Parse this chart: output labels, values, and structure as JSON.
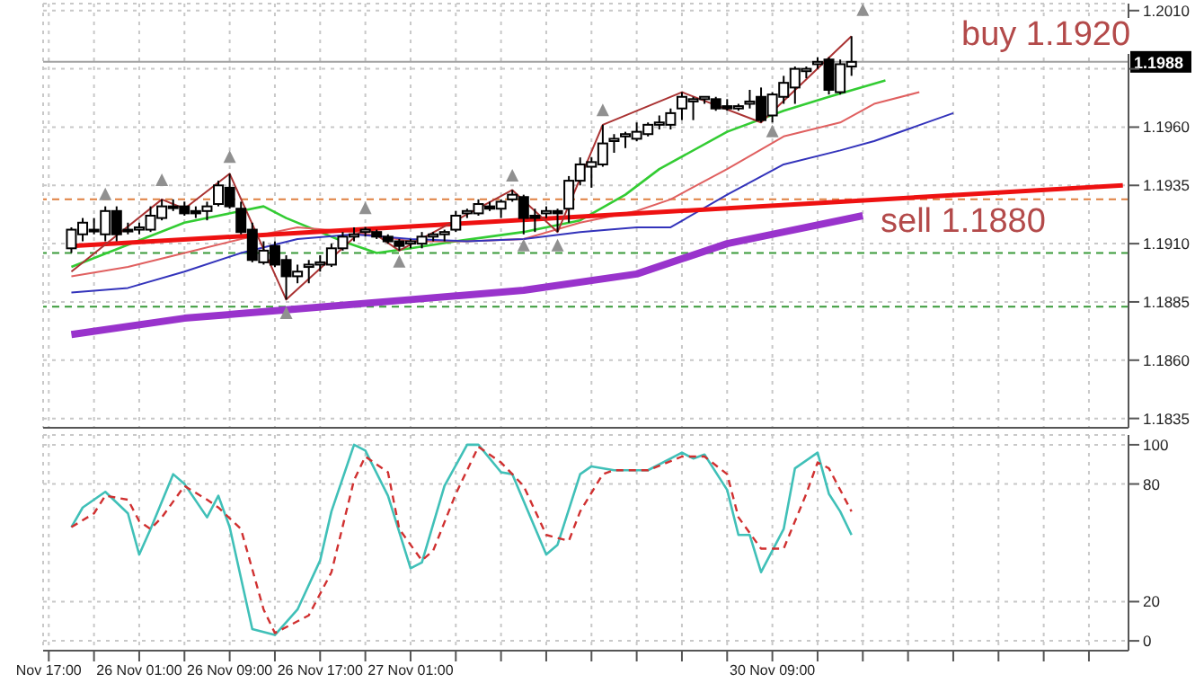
{
  "chart_data": [
    {
      "type": "candlestick",
      "categories": [
        null,
        null,
        null,
        null,
        null,
        null,
        null,
        null,
        null,
        null,
        null,
        null,
        null,
        null,
        null,
        null,
        null,
        null,
        null,
        null,
        null,
        null,
        null,
        null,
        null,
        null,
        null,
        null,
        null,
        null,
        null,
        null,
        null,
        null,
        null,
        null,
        null,
        null,
        null,
        null,
        null,
        null,
        null,
        null,
        null,
        null,
        null,
        null,
        null,
        null,
        null,
        null,
        null,
        null,
        null,
        null,
        null,
        null,
        null,
        null,
        null,
        null,
        null,
        null,
        null,
        null,
        null,
        null,
        null,
        null,
        null,
        null,
        null,
        null,
        null,
        null,
        null,
        null,
        null,
        null,
        null,
        null,
        null,
        null,
        null,
        null,
        null,
        null,
        null,
        null,
        null,
        null,
        null,
        null,
        null,
        null
      ],
      "ohlc": [
        null,
        null,
        [
          1.1908,
          1.1917,
          1.1906,
          1.1916
        ],
        [
          1.1914,
          1.1921,
          1.1911,
          1.1919
        ],
        [
          1.1916,
          1.1921,
          1.1914,
          1.1916
        ],
        [
          1.1914,
          1.1926,
          1.1911,
          1.1924
        ],
        [
          1.1924,
          1.1926,
          1.1911,
          1.1914
        ],
        [
          1.1916,
          1.1919,
          1.1914,
          1.1916
        ],
        [
          1.1916,
          1.1919,
          1.1914,
          1.1917
        ],
        [
          1.1916,
          1.1926,
          1.1915,
          1.1922
        ],
        [
          1.1921,
          1.1929,
          1.192,
          1.1926
        ],
        [
          1.1926,
          1.1929,
          1.1924,
          1.1926
        ],
        [
          1.1926,
          1.1928,
          1.1922,
          1.1923
        ],
        [
          1.1924,
          1.1926,
          1.1921,
          1.1923
        ],
        [
          1.1924,
          1.1928,
          1.192,
          1.1926
        ],
        [
          1.1927,
          1.1937,
          1.1926,
          1.1935
        ],
        [
          1.1934,
          1.194,
          1.1925,
          1.1926
        ],
        [
          1.1925,
          1.1928,
          1.1914,
          1.1915
        ],
        [
          1.1916,
          1.1919,
          1.1902,
          1.1903
        ],
        [
          1.1902,
          1.1911,
          1.1901,
          1.1907
        ],
        [
          1.1909,
          1.1911,
          1.19,
          1.1901
        ],
        [
          1.1903,
          1.1905,
          1.1886,
          1.1896
        ],
        [
          1.1896,
          1.1901,
          1.1893,
          1.1898
        ],
        [
          1.19,
          1.1903,
          1.1893,
          1.1901
        ],
        [
          1.1901,
          1.1905,
          1.1898,
          1.1902
        ],
        [
          1.1901,
          1.191,
          1.19,
          1.1908
        ],
        [
          1.1908,
          1.1915,
          1.1907,
          1.1913
        ],
        [
          1.1913,
          1.1917,
          1.1911,
          1.1914
        ],
        [
          1.1915,
          1.1917,
          1.1913,
          1.1916
        ],
        [
          1.1915,
          1.1916,
          1.1912,
          1.1913
        ],
        [
          1.1913,
          1.1914,
          1.191,
          1.1911
        ],
        [
          1.1911,
          1.1912,
          1.1907,
          1.1909
        ],
        [
          1.191,
          1.1912,
          1.1908,
          1.1911
        ],
        [
          1.191,
          1.1915,
          1.1908,
          1.1913
        ],
        [
          1.1913,
          1.1915,
          1.1911,
          1.1914
        ],
        [
          1.1914,
          1.1916,
          1.1911,
          1.1915
        ],
        [
          1.1916,
          1.1924,
          1.1915,
          1.1922
        ],
        [
          1.1923,
          1.1925,
          1.1921,
          1.1924
        ],
        [
          1.1923,
          1.1929,
          1.1922,
          1.1927
        ],
        [
          1.1926,
          1.1928,
          1.1924,
          1.1925
        ],
        [
          1.1925,
          1.1929,
          1.1921,
          1.1928
        ],
        [
          1.1929,
          1.1933,
          1.1928,
          1.1931
        ],
        [
          1.193,
          1.1931,
          1.1914,
          1.1921
        ],
        [
          1.1922,
          1.1925,
          1.1915,
          1.1921
        ],
        [
          1.1923,
          1.1926,
          1.1921,
          1.1924
        ],
        [
          1.1924,
          1.1925,
          1.1915,
          1.1923
        ],
        [
          1.1925,
          1.1939,
          1.1919,
          1.1937
        ],
        [
          1.1937,
          1.1947,
          1.1935,
          1.1944
        ],
        [
          1.1943,
          1.1947,
          1.1934,
          1.1945
        ],
        [
          1.1944,
          1.1961,
          1.1943,
          1.1953
        ],
        [
          1.1954,
          1.1957,
          1.1949,
          1.1955
        ],
        [
          1.1956,
          1.1958,
          1.1951,
          1.1957
        ],
        [
          1.1955,
          1.1962,
          1.1954,
          1.1958
        ],
        [
          1.1957,
          1.1962,
          1.1956,
          1.1961
        ],
        [
          1.1961,
          1.1965,
          1.1959,
          1.1962
        ],
        [
          1.1961,
          1.1968,
          1.1959,
          1.1966
        ],
        [
          1.1968,
          1.1975,
          1.1963,
          1.1973
        ],
        [
          1.1971,
          1.1973,
          1.1963,
          1.1972
        ],
        [
          1.1972,
          1.1973,
          1.197,
          1.1973
        ],
        [
          1.1972,
          1.1973,
          1.1967,
          1.1968
        ],
        [
          1.1969,
          1.1972,
          1.1967,
          1.1968
        ],
        [
          1.1968,
          1.197,
          1.1967,
          1.1969
        ],
        [
          1.197,
          1.1976,
          1.1968,
          1.1971
        ],
        [
          1.1973,
          1.1977,
          1.1962,
          1.1963
        ],
        [
          1.1965,
          1.1975,
          1.1962,
          1.1974
        ],
        [
          1.1973,
          1.1982,
          1.197,
          1.1979
        ],
        [
          1.1977,
          1.1986,
          1.197,
          1.1985
        ],
        [
          1.1984,
          1.1986,
          1.1981,
          1.1985
        ],
        [
          1.1987,
          1.199,
          1.1985,
          1.1988
        ],
        [
          1.1989,
          1.199,
          1.1974,
          1.1976
        ],
        [
          1.1975,
          1.1989,
          1.1974,
          1.1987
        ],
        [
          1.1986,
          1.1999,
          1.1982,
          1.1988
        ],
        null,
        null,
        null,
        null,
        null,
        null,
        null,
        null,
        null,
        null,
        null,
        null,
        null,
        null,
        null,
        null,
        null,
        null,
        null,
        null,
        null,
        null,
        null,
        null
      ],
      "color": "#000000",
      "series": [
        {
          "type": "line",
          "color": "#33cc33",
          "values": [
            null,
            null,
            1.19,
            null,
            null,
            null,
            null,
            null,
            null,
            null,
            null,
            null,
            1.1919,
            null,
            null,
            null,
            null,
            1.1924,
            null,
            1.1926,
            null,
            1.1921,
            null,
            null,
            null,
            null,
            1.1911,
            null,
            null,
            1.1906,
            null,
            null,
            1.1908,
            null,
            null,
            null,
            1.1911,
            null,
            null,
            null,
            null,
            null,
            1.1915,
            null,
            null,
            null,
            null,
            1.192,
            null,
            null,
            null,
            1.1931,
            null,
            null,
            1.1942,
            null,
            null,
            null,
            null,
            null,
            1.1958,
            null,
            null,
            null,
            null,
            1.1967,
            null,
            null,
            null,
            1.1973,
            null,
            null,
            null,
            null,
            1.198,
            null,
            null,
            null,
            null,
            null,
            null,
            null,
            null,
            null,
            null,
            null,
            null,
            null,
            null,
            null,
            null,
            null,
            null,
            null,
            null,
            null
          ]
        },
        {
          "type": "line",
          "color": "#e06060",
          "values": [
            null,
            null,
            1.1896,
            null,
            null,
            null,
            null,
            1.19,
            null,
            null,
            null,
            null,
            1.1906,
            null,
            null,
            null,
            null,
            1.1912,
            null,
            null,
            null,
            null,
            1.1917,
            null,
            null,
            null,
            null,
            1.1915,
            null,
            null,
            null,
            null,
            1.1911,
            null,
            null,
            null,
            null,
            1.1911,
            null,
            null,
            null,
            null,
            1.1912,
            null,
            null,
            null,
            null,
            1.1919,
            null,
            null,
            null,
            null,
            1.1924,
            null,
            null,
            1.1929,
            null,
            null,
            null,
            null,
            1.1942,
            null,
            null,
            null,
            null,
            1.1956,
            null,
            null,
            null,
            null,
            1.1962,
            null,
            null,
            1.197,
            null,
            null,
            null,
            1.1975,
            null,
            null,
            null,
            null,
            null,
            null,
            null,
            null,
            null,
            null,
            null,
            null,
            null,
            null,
            null,
            null,
            null,
            null
          ]
        },
        {
          "type": "line",
          "color": "#3333bb",
          "values": [
            null,
            null,
            1.1889,
            null,
            null,
            null,
            null,
            1.1891,
            null,
            null,
            null,
            null,
            1.1898,
            null,
            null,
            null,
            null,
            1.1906,
            null,
            null,
            null,
            null,
            1.1912,
            null,
            null,
            null,
            null,
            1.1914,
            null,
            null,
            null,
            null,
            1.1912,
            null,
            null,
            null,
            null,
            1.1911,
            null,
            null,
            null,
            null,
            1.1912,
            null,
            null,
            null,
            null,
            1.1915,
            null,
            null,
            null,
            null,
            1.1917,
            null,
            null,
            1.1917,
            null,
            null,
            null,
            null,
            1.1931,
            null,
            null,
            null,
            null,
            1.1944,
            null,
            null,
            null,
            null,
            1.195,
            null,
            null,
            1.1954,
            null,
            null,
            null,
            null,
            null,
            null,
            1.1966,
            null,
            null,
            null,
            null,
            null,
            null,
            null,
            null,
            null,
            null,
            null,
            null,
            null,
            null,
            null
          ]
        },
        {
          "type": "line",
          "color": "#9933cc",
          "values": [
            null,
            null,
            1.1871,
            null,
            null,
            null,
            null,
            null,
            null,
            null,
            null,
            null,
            1.1878,
            null,
            null,
            null,
            null,
            null,
            null,
            null,
            null,
            null,
            1.1882,
            null,
            null,
            null,
            null,
            null,
            null,
            null,
            null,
            null,
            1.1886,
            null,
            null,
            null,
            null,
            null,
            null,
            null,
            null,
            null,
            1.189,
            null,
            null,
            null,
            null,
            null,
            null,
            null,
            null,
            null,
            1.1897,
            null,
            null,
            null,
            null,
            null,
            null,
            null,
            1.191,
            null,
            null,
            null,
            null,
            1.1915,
            null,
            null,
            null,
            null,
            null,
            null,
            1.1922,
            null,
            null,
            null,
            null,
            null,
            null,
            null,
            null,
            null,
            null,
            null,
            null,
            null,
            null,
            null,
            null,
            null,
            null,
            null,
            null,
            null,
            null,
            null
          ]
        },
        {
          "type": "line",
          "color": "#ee1111",
          "values": [
            null,
            null,
            1.1909,
            null,
            null,
            null,
            null,
            null,
            null,
            null,
            null,
            null,
            null,
            null,
            null,
            null,
            null,
            null,
            null,
            null,
            null,
            null,
            null,
            null,
            null,
            null,
            null,
            null,
            null,
            null,
            null,
            null,
            null,
            null,
            null,
            null,
            null,
            null,
            null,
            null,
            null,
            null,
            null,
            null,
            null,
            null,
            null,
            null,
            null,
            null,
            null,
            null,
            null,
            null,
            null,
            null,
            null,
            null,
            null,
            null,
            null,
            null,
            null,
            null,
            null,
            null,
            null,
            null,
            null,
            null,
            null,
            null,
            null,
            null,
            null,
            null,
            null,
            null,
            null,
            null,
            null,
            null,
            null,
            null,
            null,
            null,
            null,
            null,
            null,
            null,
            null,
            null,
            null,
            null,
            null,
            1.1935
          ]
        },
        {
          "type": "line",
          "color": "#aa3333",
          "values": [
            null,
            null,
            1.1898,
            null,
            null,
            null,
            null,
            null,
            null,
            null,
            1.1929,
            null,
            1.1925,
            null,
            null,
            null,
            1.194,
            null,
            null,
            null,
            null,
            1.1886,
            null,
            null,
            null,
            null,
            null,
            null,
            1.1917,
            null,
            null,
            1.1907,
            null,
            null,
            null,
            null,
            null,
            null,
            null,
            null,
            null,
            1.1933,
            null,
            null,
            null,
            1.1915,
            null,
            null,
            null,
            1.1961,
            null,
            null,
            null,
            null,
            null,
            null,
            1.1975,
            null,
            null,
            null,
            null,
            null,
            null,
            1.1962,
            null,
            null,
            null,
            null,
            null,
            null,
            null,
            1.1999,
            null,
            null,
            null,
            null,
            null,
            null,
            null,
            null,
            null,
            null,
            null,
            null,
            null,
            null,
            null,
            null,
            null,
            null,
            null,
            null,
            null,
            null,
            null,
            null
          ]
        },
        {
          "type": "scatter",
          "color": "#909090",
          "marker": "triangle",
          "values": [
            null,
            null,
            null,
            null,
            null,
            1.1931,
            null,
            null,
            null,
            null,
            1.1937,
            null,
            null,
            null,
            null,
            null,
            1.1947,
            null,
            null,
            null,
            null,
            null,
            null,
            null,
            null,
            null,
            null,
            null,
            1.1925,
            null,
            null,
            null,
            null,
            null,
            null,
            null,
            null,
            null,
            null,
            null,
            null,
            1.1939,
            null,
            null,
            null,
            null,
            null,
            null,
            null,
            1.1967,
            null,
            null,
            null,
            null,
            null,
            null,
            null,
            null,
            null,
            null,
            null,
            null,
            null,
            null,
            null,
            null,
            null,
            null,
            null,
            null,
            null,
            null,
            1.201,
            null,
            null,
            null,
            null,
            null,
            null,
            null,
            null,
            null,
            null,
            null,
            null,
            null,
            null,
            null,
            null,
            null,
            null,
            null,
            null,
            null,
            null,
            null
          ]
        },
        {
          "type": "scatter",
          "color": "#909090",
          "marker": "triangle",
          "values": [
            null,
            null,
            null,
            null,
            null,
            null,
            null,
            null,
            null,
            null,
            null,
            null,
            null,
            null,
            null,
            null,
            null,
            null,
            null,
            null,
            null,
            1.188,
            null,
            null,
            null,
            null,
            null,
            null,
            null,
            null,
            null,
            1.1902,
            null,
            null,
            null,
            null,
            null,
            null,
            null,
            null,
            null,
            null,
            1.1909,
            null,
            null,
            1.1909,
            null,
            null,
            null,
            null,
            null,
            null,
            null,
            null,
            null,
            null,
            null,
            null,
            null,
            null,
            null,
            null,
            null,
            null,
            1.1958,
            null,
            null,
            null,
            null,
            null,
            null,
            null,
            null,
            null,
            null,
            null,
            null,
            null,
            null,
            null,
            null,
            null,
            null,
            null,
            null,
            null,
            null,
            null,
            null,
            null,
            null,
            null,
            null,
            null,
            null,
            null
          ]
        }
      ],
      "ylim": [
        1.1831,
        1.2013
      ],
      "yticks": [
        {
          "value": 1.201,
          "label": "1.2010"
        },
        {
          "value": 1.1985,
          "label": null
        },
        {
          "value": 1.196,
          "label": "1.1960"
        },
        1.1935,
        {
          "value": 1.191,
          "label": "1.1910"
        },
        1.1885,
        {
          "value": 1.186,
          "label": "1.1860"
        },
        1.1835
      ],
      "grid": true,
      "tick_labels": "y",
      "ref_lines": [
        {
          "axis": "y",
          "value": 1.1988,
          "label": "1.1988",
          "color": "#a0a0a0"
        },
        {
          "axis": "y",
          "value": 1.1929,
          "color": "#e08040",
          "line_style": "dashed"
        },
        {
          "axis": "y",
          "value": 1.1906,
          "color": "#3a9a3a",
          "line_style": "dashed"
        },
        {
          "axis": "y",
          "value": 1.1883,
          "color": "#3a9a3a",
          "line_style": "dashed"
        }
      ],
      "annotations": [
        "buy 1.1920",
        "sell 1.1880"
      ]
    },
    {
      "type": "line",
      "categories": [
        "Nov 17:00",
        null,
        null,
        null,
        null,
        null,
        null,
        null,
        "26 Nov 01:00",
        null,
        null,
        null,
        null,
        null,
        null,
        null,
        "26 Nov 09:00",
        null,
        null,
        null,
        null,
        null,
        null,
        null,
        "26 Nov 17:00",
        null,
        null,
        null,
        null,
        null,
        null,
        null,
        "27 Nov 01:00",
        null,
        null,
        null,
        null,
        null,
        null,
        null,
        null,
        null,
        null,
        null,
        null,
        null,
        null,
        null,
        null,
        null,
        null,
        null,
        null,
        null,
        null,
        null,
        null,
        null,
        null,
        null,
        null,
        null,
        null,
        null,
        "30 Nov 09:00",
        null,
        null,
        null,
        null,
        null,
        null,
        null,
        null,
        null,
        null,
        null,
        null,
        null,
        null,
        null,
        null,
        null,
        null,
        null,
        null,
        null,
        null,
        null,
        null,
        null,
        null,
        null,
        null,
        null,
        null,
        null
      ],
      "series": [
        {
          "color": "#40c0b8",
          "values": [
            null,
            null,
            58,
            68,
            null,
            76,
            null,
            65,
            44,
            57,
            null,
            85,
            80,
            null,
            63,
            74,
            58,
            null,
            6,
            null,
            3,
            null,
            16,
            null,
            41,
            66,
            null,
            100,
            97,
            null,
            74,
            null,
            37,
            40,
            null,
            79,
            null,
            100,
            100,
            null,
            86,
            85,
            null,
            null,
            44,
            49,
            null,
            85,
            89,
            null,
            87,
            null,
            null,
            87,
            null,
            null,
            96,
            93,
            95,
            null,
            77,
            54,
            54,
            35,
            null,
            57,
            88,
            null,
            96,
            75,
            66,
            54,
            null,
            null,
            null,
            null,
            null,
            null,
            null,
            null,
            null,
            null,
            null,
            null,
            null,
            null,
            null,
            null,
            null,
            null,
            null,
            null,
            null,
            null,
            null,
            null
          ]
        },
        {
          "color": "#d03030",
          "line_style": "dashed",
          "values": [
            null,
            null,
            58,
            null,
            65,
            74,
            null,
            72,
            61,
            57,
            63,
            null,
            79,
            null,
            72,
            68,
            null,
            57,
            null,
            16,
            4,
            null,
            null,
            13,
            null,
            35,
            null,
            82,
            94,
            null,
            86,
            57,
            null,
            41,
            46,
            null,
            75,
            null,
            99,
            null,
            91,
            null,
            79,
            null,
            54,
            null,
            51,
            66,
            null,
            85,
            87,
            null,
            87,
            87,
            null,
            null,
            94,
            null,
            94,
            null,
            85,
            63,
            null,
            47,
            null,
            47,
            null,
            75,
            91,
            88,
            null,
            66,
            null,
            null,
            null,
            null,
            null,
            null,
            null,
            null,
            null,
            null,
            null,
            null,
            null,
            null,
            null,
            null,
            null,
            null,
            null,
            null,
            null,
            null,
            null,
            null
          ]
        }
      ],
      "ylim": [
        -5,
        105
      ],
      "yticks": [
        0,
        20,
        80,
        100
      ],
      "grid": true
    }
  ]
}
